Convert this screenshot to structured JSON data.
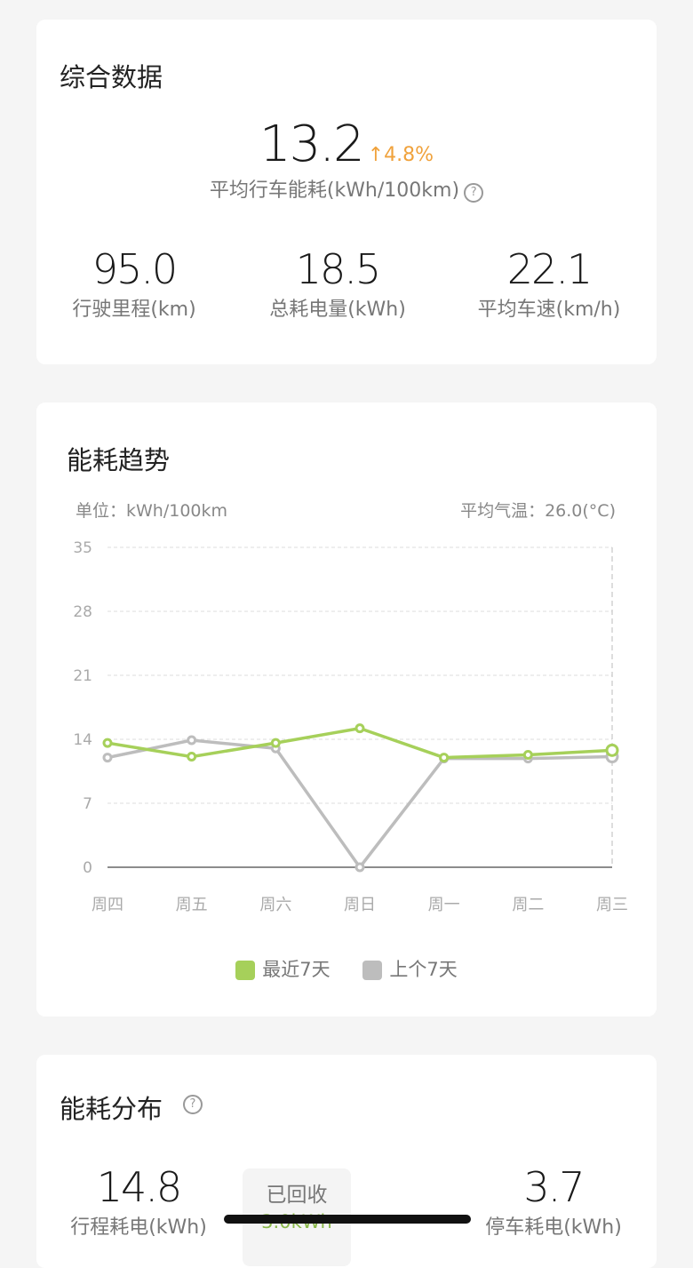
{
  "summary": {
    "title": "综合数据",
    "main_value": "13.2",
    "change": "4.8%",
    "change_dir": "up",
    "main_label": "平均行车能耗(kWh/100km)",
    "stats": [
      {
        "value": "95.0",
        "label": "行驶里程(km)"
      },
      {
        "value": "18.5",
        "label": "总耗电量(kWh)"
      },
      {
        "value": "22.1",
        "label": "平均车速(km/h)"
      }
    ]
  },
  "trend": {
    "title": "能耗趋势",
    "unit": "单位：kWh/100km",
    "temp": "平均气温：26.0(°C)"
  },
  "chart_data": {
    "type": "line",
    "categories": [
      "周四",
      "周五",
      "周六",
      "周日",
      "周一",
      "周二",
      "周三"
    ],
    "ylim": [
      0,
      35
    ],
    "yticks": [
      "0",
      "7",
      "14",
      "21",
      "28",
      "35"
    ],
    "grid": true,
    "legend": "bottom",
    "series": [
      {
        "name": "最近7天",
        "color": "#a6d05a",
        "values": [
          13.6,
          12.1,
          13.6,
          15.2,
          12.0,
          12.3,
          12.8
        ]
      },
      {
        "name": "上个7天",
        "color": "#bdbdbd",
        "values": [
          12.0,
          13.9,
          13.0,
          0,
          11.9,
          11.9,
          12.1
        ]
      }
    ]
  },
  "dist": {
    "title": "能耗分布",
    "left_value": "14.8",
    "left_label": "行程耗电(kWh)",
    "mid_label": "已回收",
    "mid_value": "3.0kWh",
    "right_value": "3.7",
    "right_label": "停车耗电(kWh)"
  },
  "colors": {
    "accent_up": "#f0a23c",
    "green": "#a6d05a",
    "gray": "#bdbdbd"
  }
}
